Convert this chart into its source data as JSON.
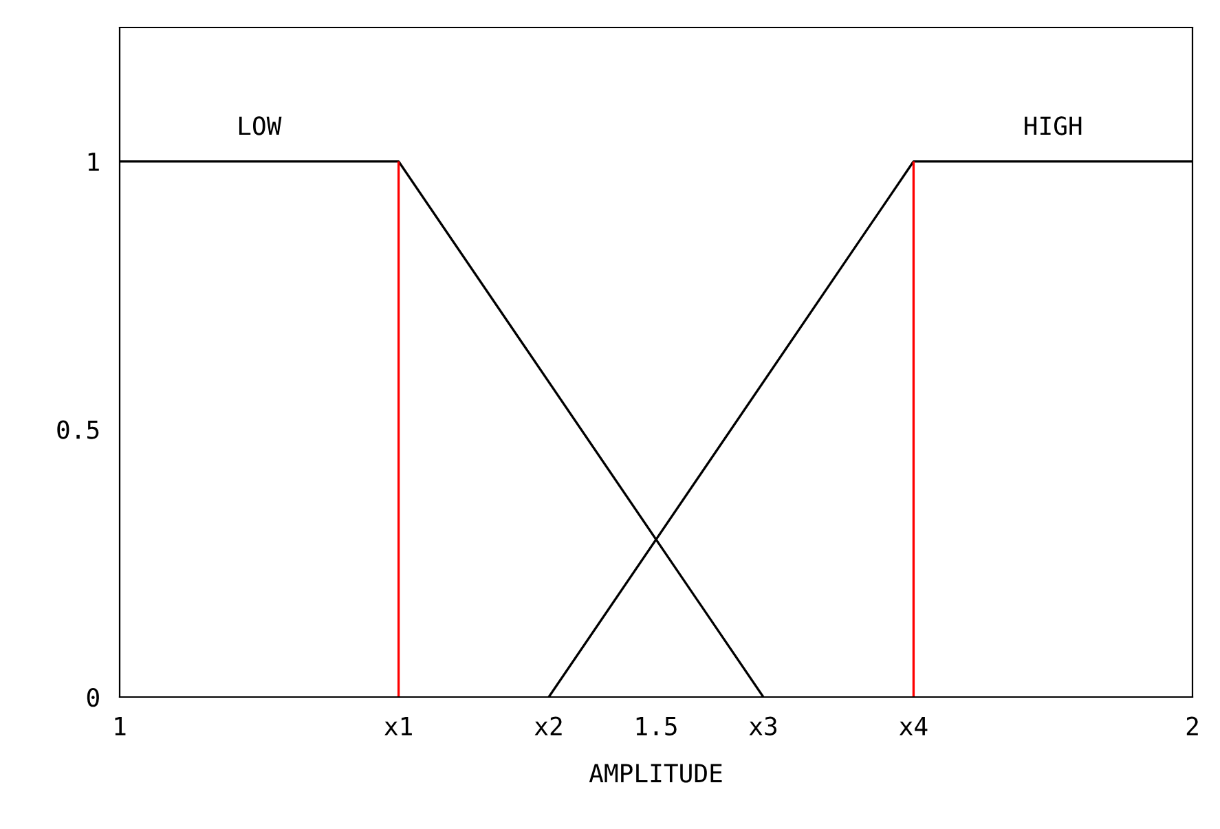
{
  "chart_data": {
    "type": "line",
    "xlabel": "AMPLITUDE",
    "series": [
      {
        "name": "LOW",
        "color": "#000000",
        "x": [
          1,
          1.26,
          1.6
        ],
        "values": [
          1,
          1,
          0
        ]
      },
      {
        "name": "HIGH",
        "color": "#000000",
        "x": [
          1.4,
          1.74,
          2
        ],
        "values": [
          0,
          1,
          1
        ]
      }
    ],
    "ref_lines": [
      {
        "axis": "x",
        "value": 1.26,
        "color": "#ff0000"
      },
      {
        "axis": "x",
        "value": 1.74,
        "color": "#ff0000"
      }
    ],
    "xlim": [
      1,
      2
    ],
    "ylim": [
      0,
      1.25
    ],
    "xticks": [
      1,
      {
        "value": 1.26,
        "label": "x1"
      },
      {
        "value": 1.4,
        "label": "x2"
      },
      1.5,
      {
        "value": 1.6,
        "label": "x3"
      },
      {
        "value": 1.74,
        "label": "x4"
      },
      2
    ],
    "yticks": [
      0,
      0.5,
      1
    ],
    "grid": false,
    "legend": false,
    "marker": "none",
    "line_style": "solid"
  }
}
